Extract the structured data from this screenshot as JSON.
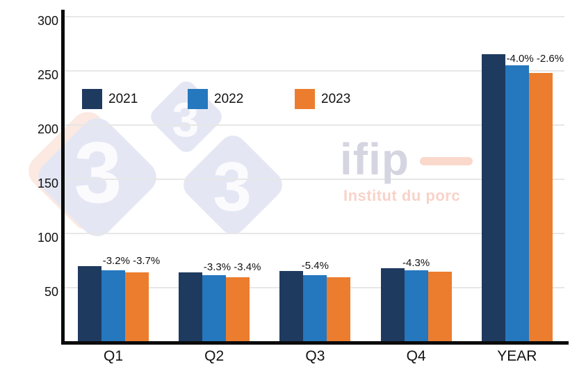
{
  "watermark": {
    "three_glyph": "3",
    "ifip_text": "ifip",
    "ifip_subtext": "Institut du porc",
    "colors": {
      "diamond": "#e4e7f3",
      "peach_diamond": "#fbe9e2",
      "glyph": "#fbfbfe",
      "ifip_text": "#d5d5e1",
      "ifip_dash": "#fad9cc",
      "ifip_subtext": "#f9d2c9"
    }
  },
  "chart_data": {
    "type": "bar",
    "title": "",
    "xlabel": "",
    "ylabel": "",
    "categories": [
      "Q1",
      "Q2",
      "Q3",
      "Q4",
      "YEAR"
    ],
    "series": [
      {
        "name": "2021",
        "color": "#1f3a5f",
        "values": [
          69.5,
          64,
          65,
          67.5,
          265
        ]
      },
      {
        "name": "2022",
        "color": "#2577be",
        "values": [
          65.5,
          61.5,
          61,
          65.5,
          254.5
        ]
      },
      {
        "name": "2023",
        "color": "#ec7d2e",
        "values": [
          63.5,
          59,
          59.5,
          64.5,
          248
        ]
      }
    ],
    "annotations": [
      {
        "category": "Q1",
        "text": "-3.2% -3.7%"
      },
      {
        "category": "Q2",
        "text": "-3.3% -3.4%"
      },
      {
        "category": "Q3",
        "text": "-5.4%"
      },
      {
        "category": "Q4",
        "text": "-4.3%"
      },
      {
        "category": "YEAR",
        "text": "-4.0% -2.6%"
      }
    ],
    "yticks": [
      50,
      100,
      150,
      200,
      250,
      300
    ],
    "ylim": [
      0,
      300
    ],
    "grid": true,
    "legend_position": "top-left-inside",
    "axis_color": "#0b0b0b",
    "gridline_color": "#e7e7e7",
    "text_color": "#111111"
  }
}
